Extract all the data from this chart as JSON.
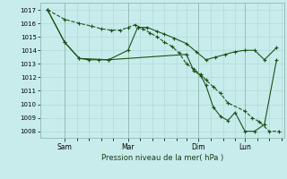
{
  "background_color": "#c8ecec",
  "grid_color": "#acd4d4",
  "line_color": "#1a5218",
  "title": "Pression niveau de la mer( hPa )",
  "ylim": [
    1007.5,
    1017.5
  ],
  "yticks": [
    1008,
    1009,
    1010,
    1011,
    1012,
    1013,
    1014,
    1015,
    1016,
    1017
  ],
  "xtick_labels": [
    "Sam",
    "Mar",
    "Dim",
    "Lun"
  ],
  "xtick_positions": [
    10,
    36,
    65,
    84
  ],
  "xminor_positions": [
    10,
    15,
    20,
    25,
    30,
    36,
    41,
    46,
    51,
    56,
    60,
    65,
    70,
    75,
    80,
    84,
    89,
    94,
    99
  ],
  "figwidth": 3.2,
  "figheight": 2.0,
  "series1_x": [
    3,
    10,
    16,
    21,
    25,
    29,
    33,
    36,
    39,
    42,
    45,
    48,
    51,
    54,
    57,
    60,
    63,
    66,
    68,
    71,
    74,
    77,
    84,
    87,
    90,
    94,
    98
  ],
  "series1_y": [
    1017.0,
    1016.3,
    1016.0,
    1015.8,
    1015.6,
    1015.5,
    1015.5,
    1015.7,
    1015.9,
    1015.6,
    1015.3,
    1015.0,
    1014.6,
    1014.3,
    1013.8,
    1013.0,
    1012.6,
    1012.2,
    1011.8,
    1011.3,
    1010.8,
    1010.1,
    1009.5,
    1009.0,
    1008.7,
    1008.0,
    1008.0
  ],
  "series2_x": [
    3,
    10,
    16,
    20,
    24,
    28,
    36,
    40,
    44,
    48,
    51,
    55,
    60,
    64,
    68,
    72,
    76,
    80,
    84,
    88,
    92,
    97
  ],
  "series2_y": [
    1017.0,
    1014.6,
    1013.4,
    1013.3,
    1013.3,
    1013.3,
    1014.0,
    1015.7,
    1015.7,
    1015.4,
    1015.2,
    1014.9,
    1014.5,
    1013.9,
    1013.3,
    1013.5,
    1013.7,
    1013.9,
    1014.0,
    1014.0,
    1013.3,
    1014.2
  ],
  "series3_x": [
    3,
    10,
    16,
    28,
    60,
    63,
    66,
    68,
    71,
    74,
    77,
    80,
    84,
    88,
    92,
    97
  ],
  "series3_y": [
    1017.0,
    1014.6,
    1013.4,
    1013.3,
    1013.7,
    1012.5,
    1012.1,
    1011.4,
    1009.8,
    1009.1,
    1008.8,
    1009.4,
    1008.0,
    1008.0,
    1008.5,
    1013.3
  ],
  "marker_style": "+",
  "marker_size": 3.0,
  "linewidth": 0.8
}
